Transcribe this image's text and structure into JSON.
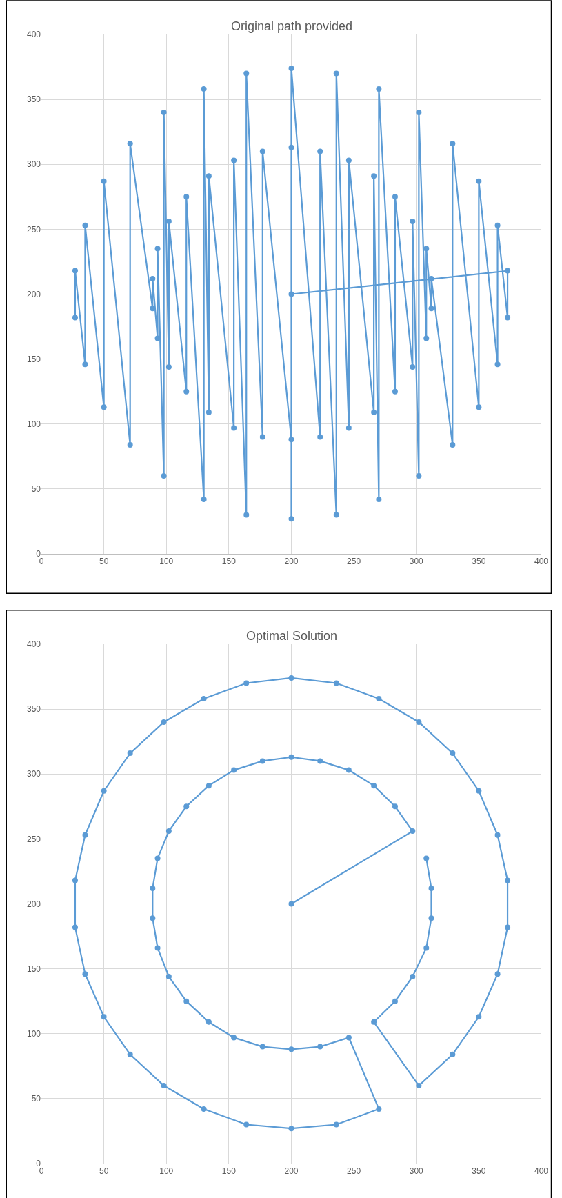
{
  "chart_data": [
    {
      "type": "line",
      "title": "Original path provided",
      "marker": "circle",
      "line_style": "solid",
      "grid": true,
      "xlim": [
        0,
        400
      ],
      "xticks": [
        0,
        50,
        100,
        150,
        200,
        250,
        300,
        350,
        400
      ],
      "ylim": [
        0,
        400
      ],
      "yticks": [
        0,
        50,
        100,
        150,
        200,
        250,
        300,
        350,
        400
      ],
      "series": [
        {
          "color": "#5b9bd5",
          "x": [
            200,
            373,
            373,
            365,
            365,
            350,
            350,
            329,
            329,
            312,
            312,
            308,
            308,
            302,
            302,
            297,
            297,
            283,
            283,
            270,
            270,
            266,
            266,
            246,
            246,
            236,
            236,
            223,
            223,
            200,
            200,
            200,
            200,
            177,
            177,
            164,
            164,
            154,
            154,
            134,
            134,
            130,
            130,
            116,
            116,
            102,
            102,
            98,
            98,
            93,
            93,
            89,
            89,
            71,
            71,
            50,
            50,
            35,
            35,
            27,
            27
          ],
          "values": [
            200,
            218,
            182,
            253,
            146,
            287,
            113,
            316,
            84,
            212,
            189,
            235,
            166,
            340,
            60,
            256,
            144,
            275,
            125,
            358,
            42,
            291,
            109,
            303,
            97,
            370,
            30,
            310,
            90,
            374,
            27,
            313,
            88,
            310,
            90,
            370,
            30,
            303,
            97,
            291,
            109,
            358,
            42,
            275,
            125,
            256,
            144,
            340,
            60,
            235,
            166,
            212,
            189,
            316,
            84,
            287,
            113,
            253,
            146,
            218,
            182
          ]
        }
      ]
    },
    {
      "type": "line",
      "title": "Optimal Solution",
      "marker": "circle",
      "line_style": "solid",
      "grid": true,
      "xlim": [
        0,
        400
      ],
      "xticks": [
        0,
        50,
        100,
        150,
        200,
        250,
        300,
        350,
        400
      ],
      "ylim": [
        0,
        400
      ],
      "yticks": [
        0,
        50,
        100,
        150,
        200,
        250,
        300,
        350,
        400
      ],
      "series": [
        {
          "color": "#5b9bd5",
          "x": [
            200,
            297,
            283,
            266,
            246,
            223,
            200,
            177,
            154,
            134,
            116,
            102,
            93,
            89,
            89,
            93,
            102,
            116,
            134,
            154,
            177,
            200,
            223,
            246,
            270,
            236,
            200,
            164,
            130,
            98,
            71,
            50,
            35,
            27,
            27,
            35,
            50,
            71,
            98,
            130,
            164,
            200,
            236,
            270,
            302,
            329,
            350,
            365,
            373,
            373,
            365,
            350,
            329,
            302,
            266,
            283,
            297,
            308,
            312,
            312,
            308
          ],
          "values": [
            200,
            256,
            275,
            291,
            303,
            310,
            313,
            310,
            303,
            291,
            275,
            256,
            235,
            212,
            189,
            166,
            144,
            125,
            109,
            97,
            90,
            88,
            90,
            97,
            42,
            30,
            27,
            30,
            42,
            60,
            84,
            113,
            146,
            182,
            218,
            253,
            287,
            316,
            340,
            358,
            370,
            374,
            370,
            358,
            340,
            316,
            287,
            253,
            218,
            182,
            146,
            113,
            84,
            60,
            109,
            125,
            144,
            166,
            189,
            212,
            235
          ]
        }
      ]
    }
  ]
}
